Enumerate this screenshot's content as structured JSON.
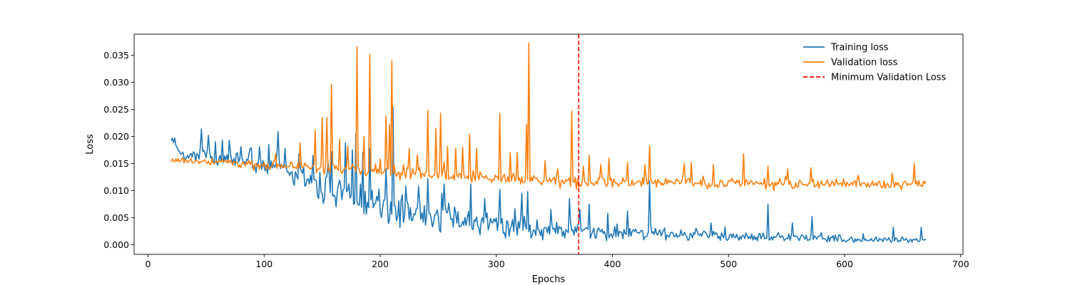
{
  "chart_data": {
    "type": "line",
    "title": "",
    "xlabel": "Epochs",
    "ylabel": "Loss",
    "xlim": [
      -12,
      702
    ],
    "ylim": [
      -0.0018,
      0.0389
    ],
    "xticks": [
      0,
      100,
      200,
      300,
      400,
      500,
      600,
      700
    ],
    "yticks": [
      0.0,
      0.005,
      0.01,
      0.015,
      0.02,
      0.025,
      0.03,
      0.035
    ],
    "ytick_labels": [
      "0.000",
      "0.005",
      "0.010",
      "0.015",
      "0.020",
      "0.025",
      "0.030",
      "0.035"
    ],
    "grid": false,
    "legend_position": "top-right",
    "legend": [
      "Training loss",
      "Validation loss",
      "Minimum Validation Loss"
    ],
    "series": [
      {
        "name": "Training loss",
        "color": "#1f77b4",
        "x_start": 20,
        "x_end": 670,
        "anchors": [
          [
            20,
            0.0195
          ],
          [
            30,
            0.0165
          ],
          [
            40,
            0.016
          ],
          [
            50,
            0.0165
          ],
          [
            60,
            0.0158
          ],
          [
            70,
            0.0155
          ],
          [
            80,
            0.0152
          ],
          [
            90,
            0.0152
          ],
          [
            100,
            0.015
          ],
          [
            110,
            0.0148
          ],
          [
            120,
            0.0135
          ],
          [
            130,
            0.0125
          ],
          [
            140,
            0.0115
          ],
          [
            150,
            0.0108
          ],
          [
            160,
            0.0098
          ],
          [
            170,
            0.009
          ],
          [
            180,
            0.0083
          ],
          [
            190,
            0.0075
          ],
          [
            200,
            0.007
          ],
          [
            210,
            0.0065
          ],
          [
            220,
            0.006
          ],
          [
            230,
            0.0056
          ],
          [
            240,
            0.0053
          ],
          [
            250,
            0.005
          ],
          [
            260,
            0.0046
          ],
          [
            270,
            0.0043
          ],
          [
            280,
            0.004
          ],
          [
            290,
            0.0038
          ],
          [
            300,
            0.0036
          ],
          [
            310,
            0.0034
          ],
          [
            320,
            0.0032
          ],
          [
            330,
            0.003
          ],
          [
            340,
            0.0029
          ],
          [
            350,
            0.0028
          ],
          [
            360,
            0.0027
          ],
          [
            370,
            0.0026
          ],
          [
            380,
            0.0025
          ],
          [
            390,
            0.0024
          ],
          [
            400,
            0.0023
          ],
          [
            420,
            0.0022
          ],
          [
            440,
            0.002
          ],
          [
            460,
            0.0019
          ],
          [
            480,
            0.0018
          ],
          [
            500,
            0.0016
          ],
          [
            520,
            0.0015
          ],
          [
            540,
            0.0013
          ],
          [
            560,
            0.0012
          ],
          [
            580,
            0.0011
          ],
          [
            600,
            0.001
          ],
          [
            620,
            0.0009
          ],
          [
            640,
            0.0009
          ],
          [
            660,
            0.0008
          ],
          [
            670,
            0.0008
          ]
        ],
        "noise": [
          [
            20,
            0.0005
          ],
          [
            100,
            0.0018
          ],
          [
            160,
            0.0025
          ],
          [
            250,
            0.0022
          ],
          [
            350,
            0.0016
          ],
          [
            450,
            0.001
          ],
          [
            550,
            0.0007
          ],
          [
            670,
            0.0004
          ]
        ],
        "spikes": [
          [
            21,
            0.0197
          ],
          [
            23,
            0.0197
          ],
          [
            46,
            0.0214
          ],
          [
            52,
            0.0202
          ],
          [
            58,
            0.019
          ],
          [
            64,
            0.0193
          ],
          [
            70,
            0.0193
          ],
          [
            80,
            0.0181
          ],
          [
            88,
            0.0178
          ],
          [
            96,
            0.0181
          ],
          [
            104,
            0.0185
          ],
          [
            112,
            0.0209
          ],
          [
            118,
            0.0178
          ],
          [
            130,
            0.0168
          ],
          [
            142,
            0.0165
          ],
          [
            155,
            0.0152
          ],
          [
            158,
            0.0172
          ],
          [
            170,
            0.0188
          ],
          [
            176,
            0.0175
          ],
          [
            179,
            0.0205
          ],
          [
            185,
            0.017
          ],
          [
            191,
            0.0178
          ],
          [
            205,
            0.014
          ],
          [
            211,
            0.0255
          ],
          [
            222,
            0.0108
          ],
          [
            233,
            0.0108
          ],
          [
            241,
            0.0122
          ],
          [
            255,
            0.0112
          ],
          [
            278,
            0.0112
          ],
          [
            290,
            0.0085
          ],
          [
            303,
            0.0102
          ],
          [
            322,
            0.0095
          ],
          [
            327,
            0.0098
          ],
          [
            347,
            0.0065
          ],
          [
            363,
            0.0085
          ],
          [
            372,
            0.0065
          ],
          [
            380,
            0.0075
          ],
          [
            396,
            0.0058
          ],
          [
            413,
            0.0062
          ],
          [
            432,
            0.0118
          ],
          [
            485,
            0.004
          ],
          [
            534,
            0.0075
          ],
          [
            555,
            0.004
          ],
          [
            572,
            0.0052
          ],
          [
            616,
            0.002
          ],
          [
            642,
            0.0032
          ],
          [
            666,
            0.0032
          ]
        ]
      },
      {
        "name": "Validation loss",
        "color": "#ff7f0e",
        "x_start": 20,
        "x_end": 670,
        "anchors": [
          [
            20,
            0.0155
          ],
          [
            40,
            0.0155
          ],
          [
            60,
            0.0152
          ],
          [
            80,
            0.015
          ],
          [
            100,
            0.0148
          ],
          [
            120,
            0.0145
          ],
          [
            140,
            0.0142
          ],
          [
            160,
            0.014
          ],
          [
            180,
            0.0137
          ],
          [
            200,
            0.0134
          ],
          [
            220,
            0.0131
          ],
          [
            240,
            0.0128
          ],
          [
            260,
            0.0126
          ],
          [
            280,
            0.0124
          ],
          [
            300,
            0.0122
          ],
          [
            320,
            0.012
          ],
          [
            340,
            0.0118
          ],
          [
            360,
            0.0115
          ],
          [
            370,
            0.0112
          ],
          [
            380,
            0.0113
          ],
          [
            400,
            0.0115
          ],
          [
            420,
            0.0115
          ],
          [
            440,
            0.0115
          ],
          [
            460,
            0.0115
          ],
          [
            500,
            0.0113
          ],
          [
            550,
            0.0112
          ],
          [
            600,
            0.0112
          ],
          [
            650,
            0.0111
          ],
          [
            670,
            0.0112
          ]
        ],
        "noise": [
          [
            20,
            0.0004
          ],
          [
            100,
            0.0008
          ],
          [
            200,
            0.0011
          ],
          [
            300,
            0.001
          ],
          [
            400,
            0.0009
          ],
          [
            500,
            0.0008
          ],
          [
            670,
            0.0007
          ]
        ],
        "spikes": [
          [
            110,
            0.0168
          ],
          [
            131,
            0.0188
          ],
          [
            144,
            0.0212
          ],
          [
            150,
            0.0235
          ],
          [
            154,
            0.0235
          ],
          [
            158,
            0.0296
          ],
          [
            165,
            0.0195
          ],
          [
            172,
            0.0182
          ],
          [
            180,
            0.0366
          ],
          [
            186,
            0.02
          ],
          [
            191,
            0.0352
          ],
          [
            200,
            0.0158
          ],
          [
            205,
            0.0238
          ],
          [
            208,
            0.0222
          ],
          [
            210,
            0.034
          ],
          [
            225,
            0.0178
          ],
          [
            232,
            0.0166
          ],
          [
            241,
            0.0248
          ],
          [
            248,
            0.0215
          ],
          [
            252,
            0.0243
          ],
          [
            258,
            0.0182
          ],
          [
            265,
            0.0178
          ],
          [
            271,
            0.018
          ],
          [
            277,
            0.0204
          ],
          [
            283,
            0.0178
          ],
          [
            303,
            0.0242
          ],
          [
            312,
            0.017
          ],
          [
            318,
            0.017
          ],
          [
            326,
            0.0222
          ],
          [
            328,
            0.0373
          ],
          [
            342,
            0.0155
          ],
          [
            353,
            0.014
          ],
          [
            365,
            0.0247
          ],
          [
            375,
            0.0145
          ],
          [
            380,
            0.0165
          ],
          [
            390,
            0.0148
          ],
          [
            397,
            0.016
          ],
          [
            413,
            0.0152
          ],
          [
            428,
            0.0148
          ],
          [
            432,
            0.0182
          ],
          [
            462,
            0.015
          ],
          [
            468,
            0.0152
          ],
          [
            487,
            0.0148
          ],
          [
            513,
            0.0168
          ],
          [
            534,
            0.0145
          ],
          [
            551,
            0.014
          ],
          [
            571,
            0.0142
          ],
          [
            612,
            0.0128
          ],
          [
            641,
            0.0132
          ],
          [
            660,
            0.015
          ]
        ]
      }
    ],
    "reference_line": {
      "name": "Minimum Validation Loss",
      "orientation": "vertical",
      "x": 371,
      "color": "#ff0000",
      "style": "dashed"
    }
  }
}
